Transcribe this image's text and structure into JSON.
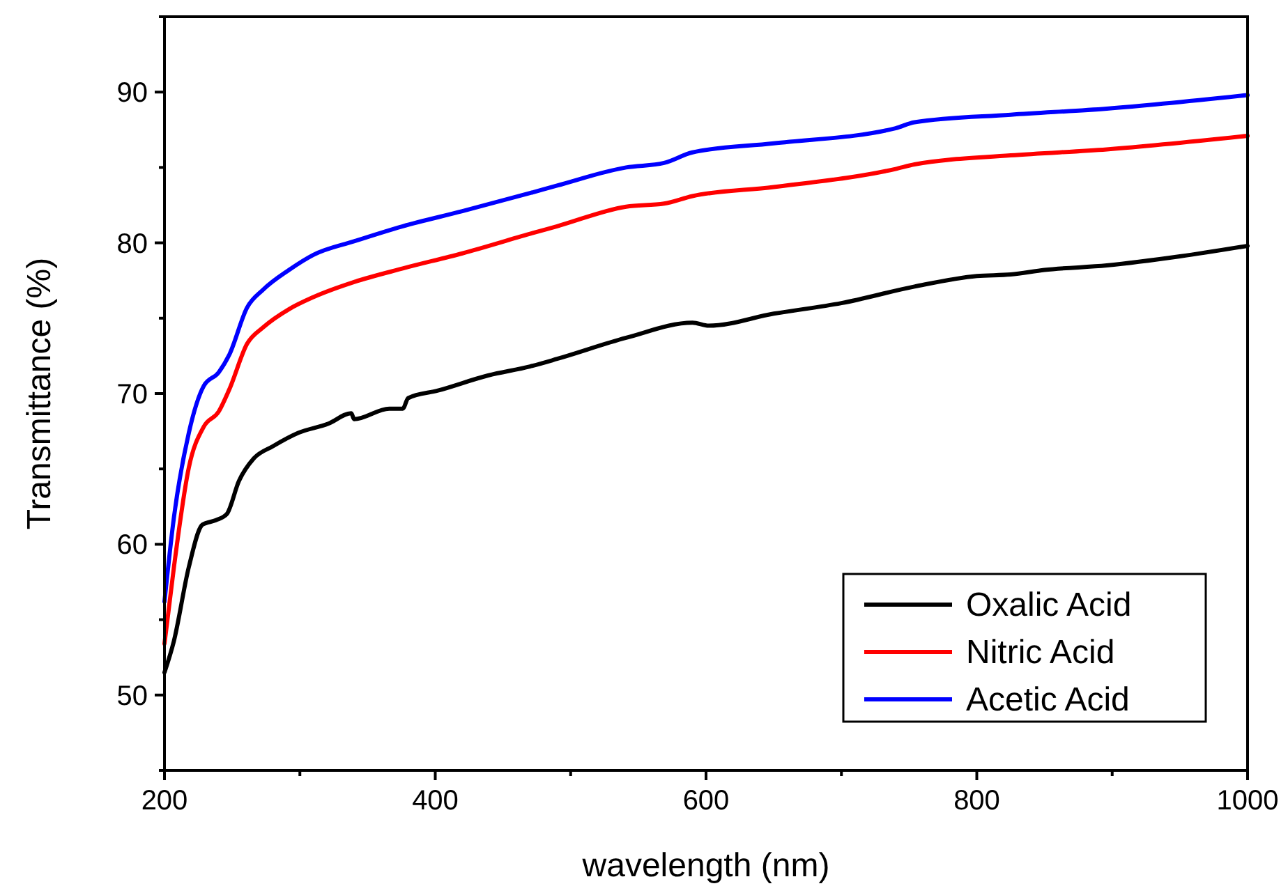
{
  "chart_data": {
    "type": "line",
    "xlabel": "wavelength (nm)",
    "ylabel": "Transmittance (%)",
    "xlim": [
      200,
      1000
    ],
    "ylim": [
      45,
      95
    ],
    "xticks": [
      200,
      {
        "value": 300,
        "label": null
      },
      400,
      {
        "value": 500,
        "label": null
      },
      600,
      {
        "value": 700,
        "label": null
      },
      800,
      {
        "value": 900,
        "label": null
      },
      1000
    ],
    "yticks": [
      {
        "value": 45,
        "label": null
      },
      50,
      {
        "value": 55,
        "label": null
      },
      60,
      {
        "value": 65,
        "label": null
      },
      70,
      {
        "value": 75,
        "label": null
      },
      80,
      {
        "value": 85,
        "label": null
      },
      90,
      {
        "value": 95,
        "label": null
      }
    ],
    "grid": false,
    "legend": "bottom right",
    "marker": "none",
    "line_style": "solid",
    "series": [
      {
        "name": "Oxalic Acid",
        "color": "#000000",
        "x": [
          200,
          207,
          218,
          228,
          238,
          246,
          255,
          266,
          280,
          299,
          321,
          338,
          340,
          366,
          376,
          380,
          402,
          439,
          470,
          490,
          541,
          590,
          602,
          650,
          700,
          754,
          800,
          825,
          850,
          896,
          950,
          1000
        ],
        "values": [
          51.5,
          53.6,
          58.5,
          61.3,
          61.6,
          62.0,
          64.2,
          65.7,
          66.5,
          67.4,
          68.0,
          68.7,
          68.3,
          69.0,
          69.0,
          69.7,
          70.2,
          71.2,
          71.8,
          72.3,
          73.7,
          74.7,
          74.5,
          75.3,
          76.0,
          77.1,
          77.8,
          77.9,
          78.2,
          78.5,
          79.1,
          79.8
        ]
      },
      {
        "name": "Nitric Acid",
        "color": "#ff0000",
        "x": [
          200,
          207,
          218,
          229,
          240,
          248,
          261,
          273,
          292,
          310,
          340,
          376,
          420,
          470,
          490,
          541,
          569,
          590,
          650,
          740,
          754,
          825,
          896,
          1000
        ],
        "values": [
          53.4,
          58.5,
          65.1,
          67.8,
          68.8,
          70.3,
          73.3,
          74.4,
          75.6,
          76.4,
          77.4,
          78.3,
          79.3,
          80.6,
          81.1,
          82.4,
          82.6,
          83.1,
          83.7,
          84.9,
          85.2,
          85.8,
          86.2,
          87.1
        ]
      },
      {
        "name": "Acetic Acid",
        "color": "#0000ff",
        "x": [
          200,
          207,
          218,
          229,
          240,
          248,
          261,
          273,
          292,
          310,
          340,
          376,
          420,
          470,
          490,
          541,
          569,
          590,
          650,
          740,
          754,
          825,
          896,
          1000
        ],
        "values": [
          56.2,
          61.8,
          67.4,
          70.5,
          71.4,
          72.6,
          75.7,
          76.9,
          78.2,
          79.2,
          80.1,
          81.1,
          82.1,
          83.3,
          83.8,
          85.0,
          85.3,
          86.0,
          86.6,
          87.6,
          88.0,
          88.5,
          88.9,
          89.8
        ]
      }
    ]
  }
}
